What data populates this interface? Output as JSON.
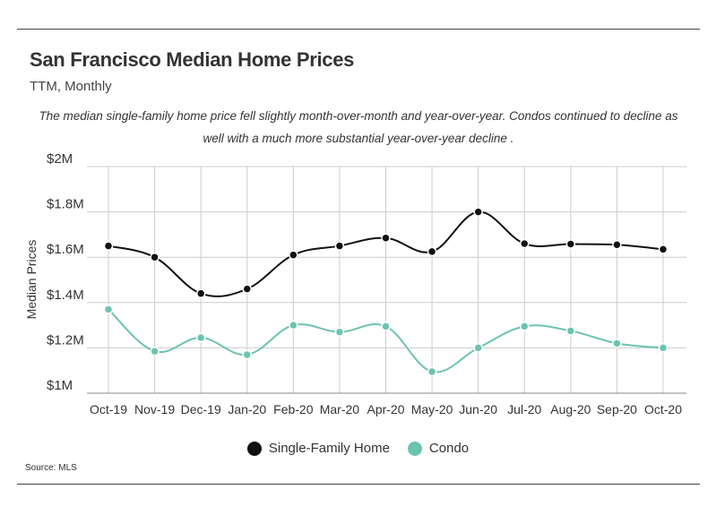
{
  "header": {
    "title": "San Francisco Median Home Prices",
    "subtitle": "TTM, Monthly",
    "description": "The median single-family home price fell slightly month-over-month and year-over-year. Condos continued to decline as well with a much more substantial year-over-year decline ."
  },
  "source": "Source:  MLS",
  "colors": {
    "sfh": "#111111",
    "condo": "#6cc3b1",
    "grid": "#cccccc",
    "axis": "#888888"
  },
  "chart_data": {
    "type": "line",
    "title": "San Francisco Median Home Prices",
    "xlabel": "",
    "ylabel": "Median Prices",
    "categories": [
      "Oct-19",
      "Nov-19",
      "Dec-19",
      "Jan-20",
      "Feb-20",
      "Mar-20",
      "Apr-20",
      "May-20",
      "Jun-20",
      "Jul-20",
      "Aug-20",
      "Sep-20",
      "Oct-20"
    ],
    "ylim": [
      1000000,
      2000000
    ],
    "yticks": [
      1000000,
      1200000,
      1400000,
      1600000,
      1800000,
      2000000
    ],
    "ytick_labels": [
      "$1M",
      "$1.2M",
      "$1.4M",
      "$1.6M",
      "$1.8M",
      "$2M"
    ],
    "grid": true,
    "legend_position": "bottom-center",
    "series": [
      {
        "name": "Single-Family Home",
        "color": "#111111",
        "values": [
          1650000,
          1600000,
          1440000,
          1460000,
          1610000,
          1650000,
          1685000,
          1625000,
          1800000,
          1660000,
          1658000,
          1655000,
          1635000
        ]
      },
      {
        "name": "Condo",
        "color": "#6cc3b1",
        "values": [
          1370000,
          1185000,
          1245000,
          1170000,
          1300000,
          1270000,
          1295000,
          1095000,
          1200000,
          1295000,
          1275000,
          1220000,
          1200000
        ]
      }
    ]
  }
}
